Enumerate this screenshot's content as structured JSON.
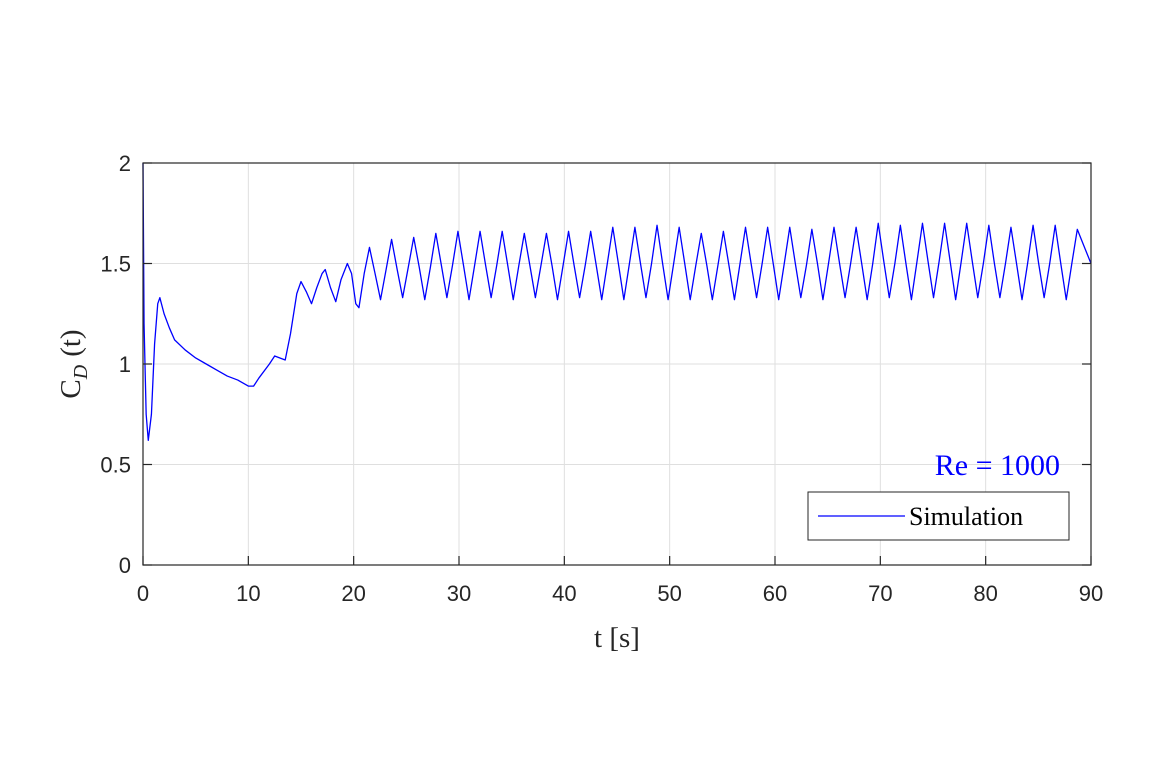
{
  "chart_data": {
    "type": "line",
    "xlabel": "t [s]",
    "ylabel": {
      "base": "C",
      "subscript": "D",
      "suffix": "(t)"
    },
    "annotation": "Re = 1000",
    "legend": "lower right",
    "grid": true,
    "xlim": [
      0,
      90
    ],
    "xticks": [
      0,
      10,
      20,
      30,
      40,
      50,
      60,
      70,
      80,
      90
    ],
    "ylim": [
      0,
      2
    ],
    "yticks": [
      0,
      0.5,
      1,
      1.5,
      2
    ],
    "x": [
      0,
      0.1,
      0.3,
      0.5,
      0.8,
      1.1,
      1.4,
      1.6,
      2,
      2.5,
      3,
      4,
      5,
      6,
      7,
      8,
      9,
      10,
      10.5,
      11,
      12,
      12.5,
      13,
      13.5,
      14,
      14.6,
      15,
      15.5,
      16,
      16.5,
      17,
      17.3,
      17.8,
      18.3,
      18.8,
      19.4,
      19.8,
      20.2,
      20.5,
      21,
      21.5,
      22.03,
      22.55,
      23.08,
      23.6,
      24.13,
      24.65,
      25.18,
      25.7,
      26.23,
      26.75,
      27.28,
      27.8,
      28.33,
      28.85,
      29.38,
      29.9,
      30.43,
      30.95,
      31.48,
      32,
      32.53,
      33.05,
      33.58,
      34.1,
      34.63,
      35.15,
      35.68,
      36.2,
      36.73,
      37.25,
      37.78,
      38.3,
      38.83,
      39.35,
      39.88,
      40.4,
      40.93,
      41.45,
      41.98,
      42.5,
      43.03,
      43.55,
      44.08,
      44.6,
      45.13,
      45.65,
      46.18,
      46.7,
      47.23,
      47.75,
      48.28,
      48.8,
      49.33,
      49.85,
      50.38,
      50.9,
      51.43,
      51.95,
      52.48,
      53,
      53.53,
      54.05,
      54.58,
      55.1,
      55.63,
      56.15,
      56.68,
      57.2,
      57.73,
      58.25,
      58.78,
      59.3,
      59.83,
      60.35,
      60.88,
      61.4,
      61.93,
      62.45,
      62.98,
      63.5,
      64.03,
      64.55,
      65.08,
      65.6,
      66.13,
      66.65,
      67.18,
      67.7,
      68.23,
      68.75,
      69.28,
      69.8,
      70.33,
      70.85,
      71.38,
      71.9,
      72.43,
      72.95,
      73.48,
      74,
      74.53,
      75.05,
      75.58,
      76.1,
      76.63,
      77.15,
      77.68,
      78.2,
      78.73,
      79.25,
      79.78,
      80.3,
      80.83,
      81.35,
      81.88,
      82.4,
      82.93,
      83.45,
      83.98,
      84.5,
      85.03,
      85.55,
      86.08,
      86.6,
      87.13,
      87.65,
      88.18,
      88.7,
      89.23,
      90
    ],
    "series": [
      {
        "name": "Simulation",
        "color": "#0000ff",
        "values": [
          2.0,
          1.2,
          0.75,
          0.62,
          0.75,
          1.1,
          1.3,
          1.33,
          1.25,
          1.18,
          1.12,
          1.07,
          1.03,
          1.0,
          0.97,
          0.94,
          0.92,
          0.89,
          0.89,
          0.93,
          1.0,
          1.04,
          1.03,
          1.02,
          1.15,
          1.35,
          1.41,
          1.36,
          1.3,
          1.38,
          1.45,
          1.47,
          1.38,
          1.31,
          1.42,
          1.5,
          1.45,
          1.3,
          1.28,
          1.45,
          1.58,
          1.45,
          1.32,
          1.47,
          1.62,
          1.47,
          1.33,
          1.48,
          1.63,
          1.48,
          1.32,
          1.48,
          1.65,
          1.49,
          1.33,
          1.49,
          1.66,
          1.49,
          1.32,
          1.49,
          1.66,
          1.49,
          1.33,
          1.49,
          1.66,
          1.49,
          1.32,
          1.49,
          1.65,
          1.49,
          1.33,
          1.49,
          1.65,
          1.49,
          1.32,
          1.49,
          1.66,
          1.49,
          1.33,
          1.49,
          1.66,
          1.49,
          1.32,
          1.5,
          1.68,
          1.5,
          1.32,
          1.5,
          1.68,
          1.5,
          1.33,
          1.5,
          1.69,
          1.5,
          1.32,
          1.5,
          1.68,
          1.5,
          1.32,
          1.49,
          1.65,
          1.49,
          1.32,
          1.49,
          1.66,
          1.49,
          1.32,
          1.5,
          1.68,
          1.5,
          1.33,
          1.5,
          1.68,
          1.5,
          1.32,
          1.5,
          1.68,
          1.5,
          1.33,
          1.49,
          1.67,
          1.5,
          1.32,
          1.5,
          1.68,
          1.5,
          1.33,
          1.5,
          1.68,
          1.5,
          1.32,
          1.5,
          1.7,
          1.51,
          1.33,
          1.5,
          1.69,
          1.5,
          1.32,
          1.51,
          1.7,
          1.51,
          1.33,
          1.51,
          1.7,
          1.51,
          1.32,
          1.51,
          1.7,
          1.51,
          1.33,
          1.5,
          1.69,
          1.5,
          1.33,
          1.5,
          1.68,
          1.5,
          1.32,
          1.5,
          1.69,
          1.5,
          1.33,
          1.5,
          1.69,
          1.5,
          1.32,
          1.5,
          1.67,
          1.6,
          1.5
        ]
      }
    ]
  }
}
